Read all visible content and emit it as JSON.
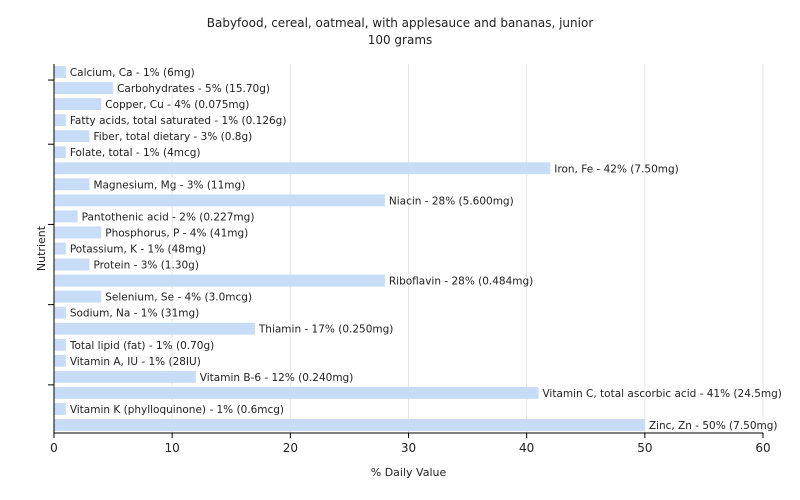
{
  "chart_data": {
    "type": "bar",
    "orientation": "horizontal",
    "title": "Babyfood, cereal, oatmeal, with applesauce and bananas, junior",
    "subtitle": "100 grams",
    "xlabel": "% Daily Value",
    "ylabel": "Nutrient",
    "xlim": [
      0,
      60
    ],
    "xticks": [
      0,
      10,
      20,
      30,
      40,
      50,
      60
    ],
    "grid": true,
    "bar_color": "#c6dcf7",
    "categories": [
      "Calcium, Ca",
      "Carbohydrates",
      "Copper, Cu",
      "Fatty acids, total saturated",
      "Fiber, total dietary",
      "Folate, total",
      "Iron, Fe",
      "Magnesium, Mg",
      "Niacin",
      "Pantothenic acid",
      "Phosphorus, P",
      "Potassium, K",
      "Protein",
      "Riboflavin",
      "Selenium, Se",
      "Sodium, Na",
      "Thiamin",
      "Total lipid (fat)",
      "Vitamin A, IU",
      "Vitamin B-6",
      "Vitamin C, total ascorbic acid",
      "Vitamin K (phylloquinone)",
      "Zinc, Zn"
    ],
    "values": [
      1,
      5,
      4,
      1,
      3,
      1,
      42,
      3,
      28,
      2,
      4,
      1,
      3,
      28,
      4,
      1,
      17,
      1,
      1,
      12,
      41,
      1,
      50
    ],
    "labels": [
      "Calcium, Ca - 1% (6mg)",
      "Carbohydrates - 5% (15.70g)",
      "Copper, Cu - 4% (0.075mg)",
      "Fatty acids, total saturated - 1% (0.126g)",
      "Fiber, total dietary - 3% (0.8g)",
      "Folate, total - 1% (4mcg)",
      "Iron, Fe - 42% (7.50mg)",
      "Magnesium, Mg - 3% (11mg)",
      "Niacin - 28% (5.600mg)",
      "Pantothenic acid - 2% (0.227mg)",
      "Phosphorus, P - 4% (41mg)",
      "Potassium, K - 1% (48mg)",
      "Protein - 3% (1.30g)",
      "Riboflavin - 28% (0.484mg)",
      "Selenium, Se - 4% (3.0mcg)",
      "Sodium, Na - 1% (31mg)",
      "Thiamin - 17% (0.250mg)",
      "Total lipid (fat) - 1% (0.70g)",
      "Vitamin A, IU - 1% (28IU)",
      "Vitamin B-6 - 12% (0.240mg)",
      "Vitamin C, total ascorbic acid - 41% (24.5mg)",
      "Vitamin K (phylloquinone) - 1% (0.6mcg)",
      "Zinc, Zn - 50% (7.50mg)"
    ]
  }
}
